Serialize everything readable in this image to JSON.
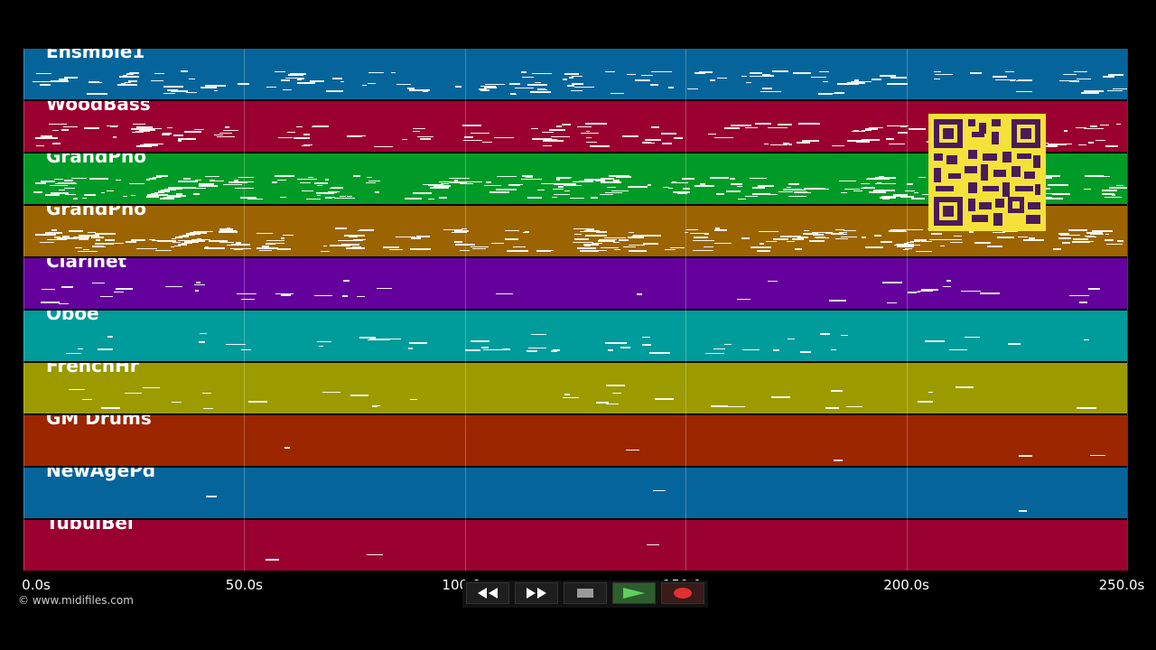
{
  "tracks": [
    {
      "name": "Ensmble1",
      "color": "#05659b"
    },
    {
      "name": "WoodBass",
      "color": "#9a0030"
    },
    {
      "name": "GrandPno",
      "color": "#009b26"
    },
    {
      "name": "GrandPno",
      "color": "#9b6400"
    },
    {
      "name": "Clarinet",
      "color": "#64009b"
    },
    {
      "name": "Oboe",
      "color": "#009b9b"
    },
    {
      "name": "FrenchHr",
      "color": "#9b9b00"
    },
    {
      "name": "GM Drums",
      "color": "#9b2600"
    },
    {
      "name": "NewAgePd",
      "color": "#05659b"
    },
    {
      "name": "TubulBel",
      "color": "#9a0030"
    }
  ],
  "axis": {
    "min": 0,
    "max": 250,
    "ticks": [
      "0.0s",
      "50.0s",
      "100.0s",
      "150.0s",
      "200.0s",
      "250.0s"
    ],
    "tick_values": [
      0,
      50,
      100,
      150,
      200,
      250
    ]
  },
  "copyright": "© www.midifiles.com",
  "transport": {
    "rewind": "rewind-icon",
    "fast_forward": "fast-forward-icon",
    "stop": "stop-icon",
    "play": "play-icon",
    "record": "record-icon"
  },
  "qr_code": "qr-code"
}
